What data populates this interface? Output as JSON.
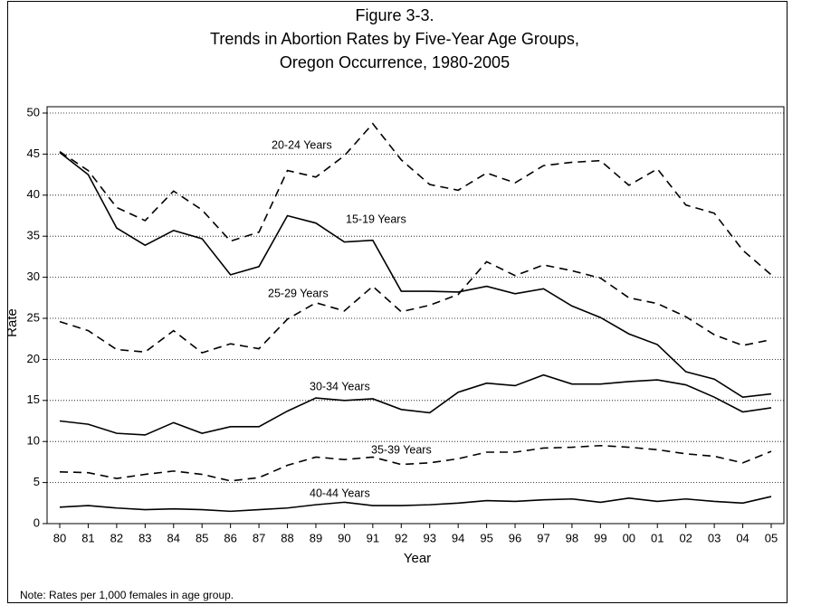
{
  "chart_data": {
    "type": "line",
    "title_lines": [
      "Figure 3-3.",
      "Trends in Abortion Rates by Five-Year Age Groups,",
      "Oregon Occurrence, 1980-2005"
    ],
    "x_label": "Year",
    "y_label": "Rate",
    "note": "Note:  Rates per 1,000 females in age group.",
    "categories": [
      "80",
      "81",
      "82",
      "83",
      "84",
      "85",
      "86",
      "87",
      "88",
      "89",
      "90",
      "91",
      "92",
      "93",
      "94",
      "95",
      "96",
      "97",
      "98",
      "99",
      "00",
      "01",
      "02",
      "03",
      "04",
      "05"
    ],
    "ylim": [
      0,
      50
    ],
    "yticks": [
      0,
      5,
      10,
      15,
      20,
      25,
      30,
      35,
      40,
      45,
      50
    ],
    "grid": true,
    "series": [
      {
        "name": "15-19 Years",
        "color": "#000000",
        "dashed": false,
        "values": [
          45.2,
          42.5,
          36,
          33.9,
          35.7,
          34.7,
          30.3,
          31.3,
          37.5,
          36.6,
          34.3,
          34.5,
          28.3,
          28.3,
          28.2,
          28.9,
          28,
          28.6,
          26.5,
          25.1,
          23.1,
          21.8,
          18.5,
          17.6,
          15.4,
          15.8
        ]
      },
      {
        "name": "20-24 Years",
        "color": "#000000",
        "dashed": true,
        "values": [
          45.3,
          43,
          38.5,
          36.9,
          40.5,
          38.2,
          34.4,
          35.5,
          43,
          42.2,
          44.8,
          48.7,
          44.3,
          41.3,
          40.6,
          42.7,
          41.5,
          43.6,
          44,
          44.2,
          41.2,
          43.2,
          38.8,
          37.8,
          33.3,
          30.3
        ]
      },
      {
        "name": "25-29 Years",
        "color": "#000000",
        "dashed": true,
        "values": [
          24.6,
          23.5,
          21.2,
          20.9,
          23.5,
          20.8,
          21.9,
          21.3,
          24.9,
          26.9,
          25.9,
          28.9,
          25.8,
          26.6,
          27.9,
          31.9,
          30.2,
          31.5,
          30.8,
          29.9,
          27.5,
          26.8,
          25.2,
          23,
          21.7,
          22.4
        ]
      },
      {
        "name": "30-34 Years",
        "color": "#000000",
        "dashed": false,
        "values": [
          12.5,
          12.1,
          11,
          10.8,
          12.3,
          11,
          11.8,
          11.8,
          13.7,
          15.3,
          15,
          15.2,
          13.9,
          13.5,
          16,
          17.1,
          16.8,
          18.1,
          17,
          17,
          17.3,
          17.5,
          16.9,
          15.4,
          13.6,
          14.1
        ]
      },
      {
        "name": "35-39 Years",
        "color": "#000000",
        "dashed": true,
        "values": [
          6.3,
          6.2,
          5.5,
          6,
          6.4,
          6,
          5.2,
          5.6,
          7.1,
          8.1,
          7.8,
          8.1,
          7.2,
          7.4,
          7.9,
          8.7,
          8.7,
          9.2,
          9.3,
          9.5,
          9.3,
          9,
          8.5,
          8.2,
          7.4,
          8.8
        ]
      },
      {
        "name": "40-44 Years",
        "color": "#000000",
        "dashed": false,
        "values": [
          2,
          2.2,
          1.9,
          1.7,
          1.8,
          1.7,
          1.5,
          1.7,
          1.9,
          2.3,
          2.6,
          2.2,
          2.2,
          2.3,
          2.5,
          2.8,
          2.7,
          2.9,
          3,
          2.6,
          3.1,
          2.7,
          3,
          2.7,
          2.5,
          3.3
        ]
      }
    ]
  }
}
